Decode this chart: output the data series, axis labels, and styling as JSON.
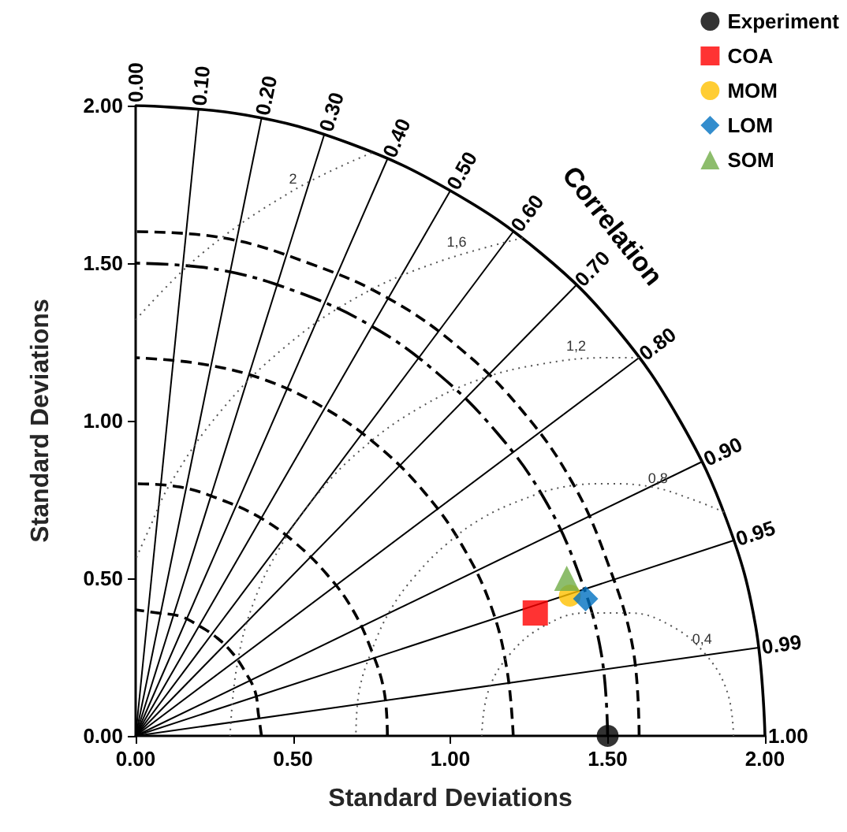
{
  "chart_data": {
    "type": "scatter",
    "xlabel": "Standard Deviations",
    "ylabel": "Standard Deviations",
    "xlim": [
      0,
      2
    ],
    "ylim": [
      0,
      2
    ],
    "xticks": [
      {
        "value": 0,
        "label": "0.00"
      },
      {
        "value": 0.5,
        "label": "0.50"
      },
      {
        "value": 1,
        "label": "1.00"
      },
      {
        "value": 1.5,
        "label": "1.50"
      },
      {
        "value": 2,
        "label": "2.00"
      }
    ],
    "yticks": [
      {
        "value": 0,
        "label": "0.00"
      },
      {
        "value": 0.5,
        "label": "0.50"
      },
      {
        "value": 1,
        "label": "1.00"
      },
      {
        "value": 1.5,
        "label": "1.50"
      },
      {
        "value": 2,
        "label": "2.00"
      }
    ],
    "grid": false,
    "legend": "top right",
    "series": [
      {
        "type": "line",
        "color": "#000000",
        "marker": "none",
        "line_style": "solid",
        "x": [
          2,
          1.97,
          1.88,
          1.73,
          1.53,
          1.29,
          1,
          0.68,
          0.35,
          0
        ],
        "values": [
          0,
          0.35,
          0.68,
          1,
          1.29,
          1.53,
          1.73,
          1.88,
          1.97,
          2
        ]
      },
      {
        "type": "line",
        "color": "#000000",
        "marker": "none",
        "line_style": "dashed",
        "x": [
          0.4,
          0.39,
          0.38,
          0.35,
          0.31,
          0.26,
          0.2,
          0.14,
          0.07,
          0
        ],
        "values": [
          0,
          0.07,
          0.14,
          0.2,
          0.26,
          0.31,
          0.35,
          0.38,
          0.39,
          0.4
        ]
      },
      {
        "type": "line",
        "color": "#000000",
        "marker": "none",
        "line_style": "dashed",
        "x": [
          0.8,
          0.79,
          0.75,
          0.69,
          0.61,
          0.51,
          0.4,
          0.27,
          0.14,
          0
        ],
        "values": [
          0,
          0.14,
          0.27,
          0.4,
          0.51,
          0.61,
          0.69,
          0.75,
          0.79,
          0.8
        ]
      },
      {
        "type": "line",
        "color": "#000000",
        "marker": "none",
        "line_style": "dashed",
        "x": [
          1.2,
          1.18,
          1.13,
          1.04,
          0.92,
          0.77,
          0.6,
          0.41,
          0.21,
          0
        ],
        "values": [
          0,
          0.21,
          0.41,
          0.6,
          0.77,
          0.92,
          1.04,
          1.13,
          1.18,
          1.2
        ]
      },
      {
        "type": "line",
        "color": "#000000",
        "marker": "none",
        "line_style": "dashdot",
        "x": [
          1.5,
          1.48,
          1.41,
          1.3,
          1.15,
          0.96,
          0.75,
          0.51,
          0.26,
          0
        ],
        "values": [
          0,
          0.26,
          0.51,
          0.75,
          0.96,
          1.15,
          1.3,
          1.41,
          1.48,
          1.5
        ]
      },
      {
        "type": "line",
        "color": "#000000",
        "marker": "none",
        "line_style": "dashed",
        "x": [
          1.6,
          1.58,
          1.5,
          1.39,
          1.23,
          1.03,
          0.8,
          0.55,
          0.28,
          0
        ],
        "values": [
          0,
          0.28,
          0.55,
          0.8,
          1.03,
          1.23,
          1.39,
          1.5,
          1.58,
          1.6
        ]
      },
      {
        "type": "line",
        "color": "#000000",
        "marker": "none",
        "line_style": "solid",
        "x": [
          0,
          0
        ],
        "values": [
          0,
          2
        ]
      },
      {
        "type": "line",
        "color": "#000000",
        "marker": "none",
        "line_style": "solid",
        "x": [
          0,
          0.2
        ],
        "values": [
          0,
          1.99
        ]
      },
      {
        "type": "line",
        "color": "#000000",
        "marker": "none",
        "line_style": "solid",
        "x": [
          0,
          0.4
        ],
        "values": [
          0,
          1.96
        ]
      },
      {
        "type": "line",
        "color": "#000000",
        "marker": "none",
        "line_style": "solid",
        "x": [
          0,
          0.6
        ],
        "values": [
          0,
          1.91
        ]
      },
      {
        "type": "line",
        "color": "#000000",
        "marker": "none",
        "line_style": "solid",
        "x": [
          0,
          0.8
        ],
        "values": [
          0,
          1.83
        ]
      },
      {
        "type": "line",
        "color": "#000000",
        "marker": "none",
        "line_style": "solid",
        "x": [
          0,
          1
        ],
        "values": [
          0,
          1.73
        ]
      },
      {
        "type": "line",
        "color": "#000000",
        "marker": "none",
        "line_style": "solid",
        "x": [
          0,
          1.2
        ],
        "values": [
          0,
          1.6
        ]
      },
      {
        "type": "line",
        "color": "#000000",
        "marker": "none",
        "line_style": "solid",
        "x": [
          0,
          1.4
        ],
        "values": [
          0,
          1.43
        ]
      },
      {
        "type": "line",
        "color": "#000000",
        "marker": "none",
        "line_style": "solid",
        "x": [
          0,
          1.6
        ],
        "values": [
          0,
          1.2
        ]
      },
      {
        "type": "line",
        "color": "#000000",
        "marker": "none",
        "line_style": "solid",
        "x": [
          0,
          1.8
        ],
        "values": [
          0,
          0.87
        ]
      },
      {
        "type": "line",
        "color": "#000000",
        "marker": "none",
        "line_style": "solid",
        "x": [
          0,
          1.9
        ],
        "values": [
          0,
          0.62
        ]
      },
      {
        "type": "line",
        "color": "#000000",
        "marker": "none",
        "line_style": "solid",
        "x": [
          0,
          1.98
        ],
        "values": [
          0,
          0.28
        ]
      },
      {
        "type": "line",
        "color": "#000000",
        "marker": "none",
        "line_style": "solid",
        "x": [
          0,
          2
        ],
        "values": [
          0,
          0
        ]
      },
      {
        "type": "line",
        "color": "#555555",
        "marker": "none",
        "line_style": "dotted",
        "x": [
          1.9,
          1.88,
          1.81,
          1.7,
          1.57,
          1.43,
          1.3,
          1.19,
          1.12,
          1.1
        ],
        "values": [
          0,
          0.14,
          0.26,
          0.35,
          0.39,
          0.39,
          0.35,
          0.26,
          0.14,
          0
        ]
      },
      {
        "type": "line",
        "color": "#555555",
        "marker": "none",
        "line_style": "dotted",
        "x": [
          1.87,
          1.77,
          1.64,
          1.5,
          1.36,
          1.23,
          1.1,
          0.99,
          0.89,
          0.81,
          0.75,
          0.71,
          0.7
        ],
        "values": [
          0.71,
          0.75,
          0.79,
          0.8,
          0.79,
          0.75,
          0.69,
          0.61,
          0.51,
          0.4,
          0.27,
          0.14,
          0
        ]
      },
      {
        "type": "line",
        "color": "#555555",
        "marker": "none",
        "line_style": "dotted",
        "x": [
          1.6,
          1.5,
          1.29,
          1.09,
          0.9,
          0.73,
          0.58,
          0.46,
          0.37,
          0.32,
          0.3
        ],
        "values": [
          1.2,
          1.2,
          1.18,
          1.13,
          1.04,
          0.92,
          0.77,
          0.6,
          0.41,
          0.21,
          0
        ]
      },
      {
        "type": "line",
        "color": "#555555",
        "marker": "none",
        "line_style": "dotted",
        "x": [
          1.23,
          0.95,
          0.7,
          0.47,
          0.27,
          0.11,
          0.04,
          0
        ],
        "values": [
          1.58,
          1.5,
          1.39,
          1.23,
          1.03,
          0.8,
          0.65,
          0.56
        ]
      },
      {
        "type": "line",
        "color": "#555555",
        "marker": "none",
        "line_style": "dotted",
        "x": [
          0.75,
          0.5,
          0.21,
          0
        ],
        "values": [
          1.85,
          1.73,
          1.53,
          1.32
        ]
      },
      {
        "name": "Experiment",
        "color": "#000000",
        "marker": "circle",
        "x": [
          1.5
        ],
        "values": [
          0
        ]
      },
      {
        "name": "COA",
        "color": "#ff0000",
        "marker": "square",
        "x": [
          1.27
        ],
        "values": [
          0.39
        ]
      },
      {
        "name": "MOM",
        "color": "#ffc000",
        "marker": "circle",
        "x": [
          1.38
        ],
        "values": [
          0.445
        ]
      },
      {
        "name": "LOM",
        "color": "#0070c0",
        "marker": "diamond",
        "x": [
          1.43
        ],
        "values": [
          0.435
        ]
      },
      {
        "name": "SOM",
        "color": "#70ad47",
        "marker": "triangle",
        "x": [
          1.37
        ],
        "values": [
          0.5
        ]
      }
    ],
    "annotations": [
      "Correlation",
      {
        "text": "0.00",
        "x": 0,
        "y": 2
      },
      {
        "text": "0.10",
        "x": 0.2,
        "y": 1.99
      },
      {
        "text": "0.20",
        "x": 0.4,
        "y": 1.96
      },
      {
        "text": "0.30",
        "x": 0.6,
        "y": 1.91
      },
      {
        "text": "0.40",
        "x": 0.8,
        "y": 1.83
      },
      {
        "text": "0.50",
        "x": 1.0,
        "y": 1.73
      },
      {
        "text": "0.60",
        "x": 1.2,
        "y": 1.6
      },
      {
        "text": "0.70",
        "x": 1.4,
        "y": 1.43
      },
      {
        "text": "0.80",
        "x": 1.6,
        "y": 1.2
      },
      {
        "text": "0.90",
        "x": 1.8,
        "y": 0.87
      },
      {
        "text": "0.95",
        "x": 1.9,
        "y": 0.62
      },
      {
        "text": "0.99",
        "x": 1.98,
        "y": 0.28
      },
      {
        "text": "1.00",
        "x": 2,
        "y": 0
      },
      {
        "text": "2",
        "x": 0.5,
        "y": 1.73
      },
      {
        "text": "1,6",
        "x": 1.02,
        "y": 1.53
      },
      {
        "text": "1,2",
        "x": 1.4,
        "y": 1.2
      },
      {
        "text": "0,8",
        "x": 1.66,
        "y": 0.78
      },
      {
        "text": "0,4",
        "x": 1.8,
        "y": 0.27
      }
    ]
  }
}
